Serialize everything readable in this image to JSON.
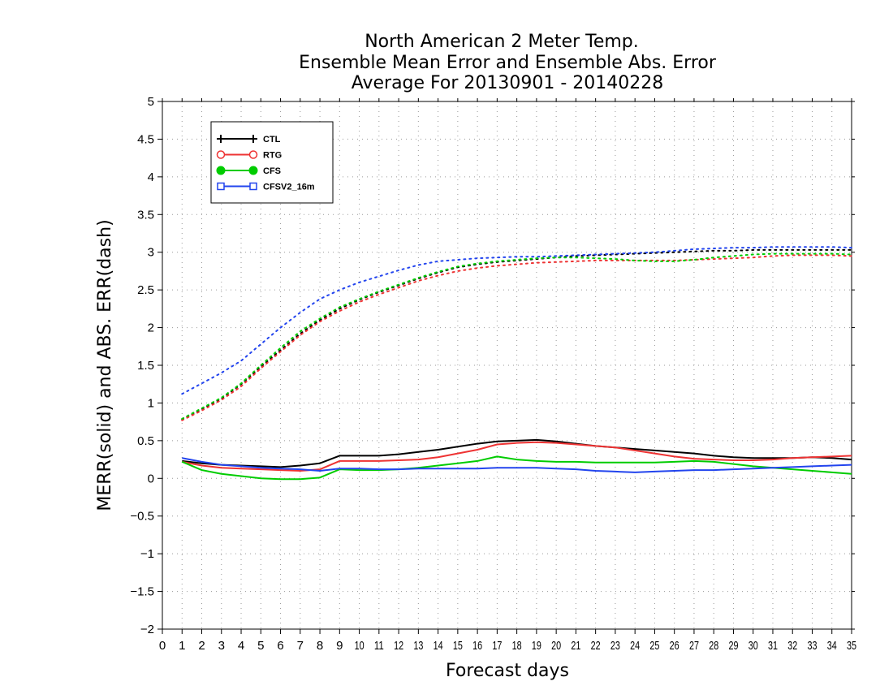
{
  "chart_data": {
    "type": "line",
    "title": [
      "North American 2 Meter Temp.",
      "Ensemble Mean Error and Ensemble Abs. Error",
      "Average For 20130901 - 20140228"
    ],
    "xlabel": "Forecast days",
    "ylabel": "MERR(solid) and ABS. ERR(dash)",
    "xlim": [
      0,
      35
    ],
    "ylim": [
      -2,
      5
    ],
    "x_ticks": [
      0,
      1,
      2,
      3,
      4,
      5,
      6,
      7,
      8,
      9,
      10,
      11,
      12,
      13,
      14,
      15,
      16,
      17,
      18,
      19,
      20,
      21,
      22,
      23,
      24,
      25,
      26,
      27,
      28,
      29,
      30,
      31,
      32,
      33,
      34,
      35
    ],
    "y_ticks": [
      -2,
      -1.5,
      -1,
      -0.5,
      0,
      0.5,
      1,
      1.5,
      2,
      2.5,
      3,
      3.5,
      4,
      4.5,
      5
    ],
    "y_tick_labels": [
      "−2",
      "−1.5",
      "−1",
      "−0.5",
      "0",
      "0.5",
      "1",
      "1.5",
      "2",
      "2.5",
      "3",
      "3.5",
      "4",
      "4.5",
      "5"
    ],
    "grid": true,
    "legend_position": "top-left",
    "x": [
      1,
      2,
      3,
      4,
      5,
      6,
      7,
      8,
      9,
      10,
      11,
      12,
      13,
      14,
      15,
      16,
      17,
      18,
      19,
      20,
      21,
      22,
      23,
      24,
      25,
      26,
      27,
      28,
      29,
      30,
      31,
      32,
      33,
      34,
      35
    ],
    "series": [
      {
        "name": "CTL",
        "color": "#000000",
        "marker": "plus",
        "merr": [
          0.23,
          0.2,
          0.18,
          0.17,
          0.16,
          0.15,
          0.17,
          0.2,
          0.3,
          0.3,
          0.3,
          0.32,
          0.35,
          0.38,
          0.42,
          0.46,
          0.49,
          0.5,
          0.51,
          0.49,
          0.46,
          0.43,
          0.41,
          0.39,
          0.37,
          0.35,
          0.33,
          0.3,
          0.28,
          0.27,
          0.27,
          0.27,
          0.28,
          0.27,
          0.25
        ],
        "abs_err": [
          0.78,
          0.92,
          1.06,
          1.25,
          1.48,
          1.7,
          1.92,
          2.1,
          2.25,
          2.37,
          2.47,
          2.56,
          2.65,
          2.73,
          2.8,
          2.84,
          2.87,
          2.89,
          2.91,
          2.93,
          2.95,
          2.96,
          2.97,
          2.98,
          2.99,
          3.0,
          3.01,
          3.02,
          3.02,
          3.03,
          3.03,
          3.03,
          3.03,
          3.03,
          3.03
        ]
      },
      {
        "name": "RTG",
        "color": "#ee3333",
        "marker": "circle",
        "merr": [
          0.22,
          0.17,
          0.14,
          0.13,
          0.12,
          0.11,
          0.1,
          0.12,
          0.23,
          0.23,
          0.23,
          0.24,
          0.25,
          0.28,
          0.33,
          0.38,
          0.45,
          0.47,
          0.48,
          0.47,
          0.45,
          0.43,
          0.41,
          0.37,
          0.33,
          0.29,
          0.26,
          0.25,
          0.24,
          0.24,
          0.25,
          0.27,
          0.28,
          0.29,
          0.3
        ],
        "abs_err": [
          0.77,
          0.9,
          1.04,
          1.22,
          1.46,
          1.68,
          1.9,
          2.08,
          2.22,
          2.34,
          2.44,
          2.53,
          2.62,
          2.69,
          2.75,
          2.79,
          2.82,
          2.84,
          2.86,
          2.87,
          2.88,
          2.89,
          2.89,
          2.89,
          2.89,
          2.89,
          2.9,
          2.91,
          2.92,
          2.93,
          2.95,
          2.96,
          2.96,
          2.96,
          2.95
        ]
      },
      {
        "name": "CFS",
        "color": "#00cc00",
        "marker": "dot",
        "merr": [
          0.22,
          0.11,
          0.06,
          0.03,
          0.0,
          -0.01,
          -0.01,
          0.01,
          0.12,
          0.11,
          0.11,
          0.12,
          0.14,
          0.17,
          0.2,
          0.23,
          0.29,
          0.25,
          0.23,
          0.22,
          0.22,
          0.21,
          0.21,
          0.21,
          0.21,
          0.22,
          0.23,
          0.22,
          0.19,
          0.16,
          0.14,
          0.12,
          0.1,
          0.08,
          0.06
        ],
        "abs_err": [
          0.79,
          0.93,
          1.07,
          1.26,
          1.5,
          1.73,
          1.95,
          2.12,
          2.27,
          2.38,
          2.48,
          2.57,
          2.66,
          2.74,
          2.81,
          2.85,
          2.88,
          2.9,
          2.92,
          2.93,
          2.93,
          2.92,
          2.91,
          2.89,
          2.88,
          2.88,
          2.9,
          2.93,
          2.95,
          2.97,
          2.98,
          2.98,
          2.98,
          2.98,
          2.97
        ]
      },
      {
        "name": "CFSV2_16m",
        "color": "#2244ee",
        "marker": "square",
        "merr": [
          0.27,
          0.22,
          0.18,
          0.16,
          0.14,
          0.13,
          0.12,
          0.1,
          0.13,
          0.13,
          0.12,
          0.12,
          0.13,
          0.13,
          0.13,
          0.13,
          0.14,
          0.14,
          0.14,
          0.13,
          0.12,
          0.1,
          0.09,
          0.08,
          0.09,
          0.1,
          0.11,
          0.11,
          0.12,
          0.13,
          0.14,
          0.15,
          0.16,
          0.17,
          0.18
        ],
        "abs_err": [
          1.12,
          1.26,
          1.4,
          1.56,
          1.78,
          2.0,
          2.2,
          2.38,
          2.5,
          2.6,
          2.68,
          2.76,
          2.83,
          2.88,
          2.9,
          2.92,
          2.93,
          2.94,
          2.94,
          2.95,
          2.96,
          2.97,
          2.98,
          2.99,
          3.0,
          3.02,
          3.04,
          3.05,
          3.06,
          3.06,
          3.07,
          3.07,
          3.07,
          3.07,
          3.06
        ]
      }
    ]
  }
}
